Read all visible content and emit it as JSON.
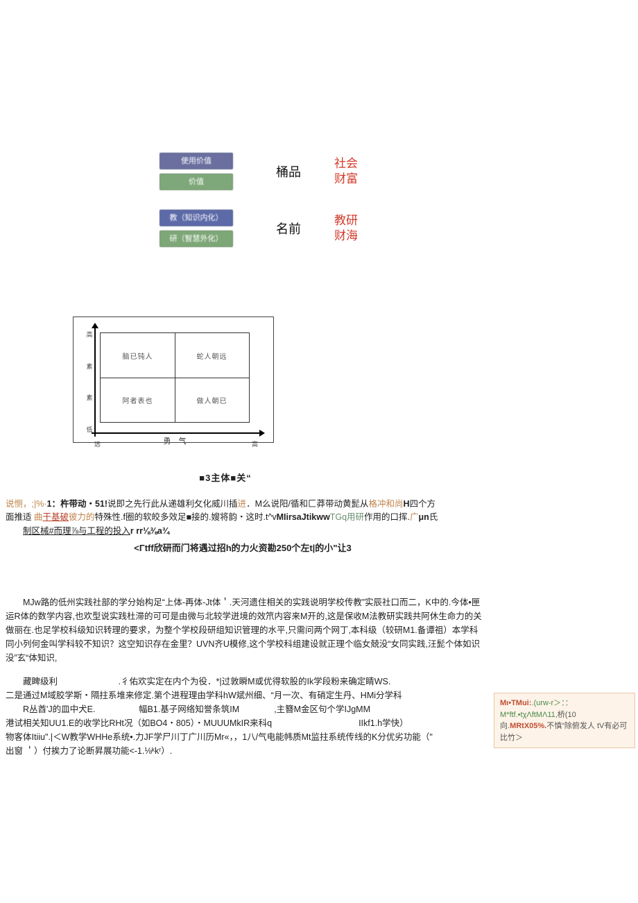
{
  "pairs": [
    {
      "pills": [
        {
          "text": "使用价值",
          "bg": "#6a6fa0"
        },
        {
          "text": "价值",
          "bg": "#7fa87a"
        }
      ],
      "mid": "桶品",
      "right": [
        "社会",
        "财富"
      ]
    },
    {
      "pills": [
        {
          "text": "教（知识内化）",
          "bg": "#5d6aa8"
        },
        {
          "text": "研（智慧外化）",
          "bg": "#7ea778"
        }
      ],
      "mid": "名前",
      "right": [
        "教研",
        "财海"
      ]
    }
  ],
  "quadrant": {
    "border_color": "#333333",
    "cells": {
      "tl": "脑已钝人",
      "tr": "蛇人朝远",
      "bl": "阿者表也",
      "br": "做人朝已"
    },
    "y_labels": [
      "高",
      "素",
      "素",
      "低"
    ],
    "x_labels_ends": [
      "远",
      "高"
    ],
    "x_center": "勇 气",
    "caption": "■3主体■关“"
  },
  "para1": {
    "lines": [
      {
        "pre": "说恻，;|%·",
        "b1": "1：杵带动・51!",
        "mid1": "说即之先行此从递雄利攵化威川插",
        "a1": "进",
        "mid2": "．M么说阳/循和匚莽带动黄髭从",
        "a2": "格冲和尚",
        "b2": "H",
        "tail": "四个方"
      },
      {
        "pre": "面推适",
        "a1": " 曲",
        "u1": "干基破",
        "a2": "彼力的",
        "mid": "特殊性.f圈的软皎多效足",
        "b1": "■",
        "mid2": "接的.嫂将韵・这时.t^v",
        "b2": "MIirsaJtikww",
        "a3": "TGq用研",
        "tail": "作用的口挥.",
        "a4": "广",
        "b3": "μn",
        "tail2": "氏"
      },
      {
        "indent": true,
        "u1": "制区械#而理⅞与工程的投入",
        "b1": "r",
        "right": "rr⅛⅜a¾"
      }
    ],
    "center": "<Γtff欣研而门将遇过招h的力火资勘250个左t|的小\"让3"
  },
  "sticky": {
    "l1a": "Mι•TMui:",
    "l1b": ".(urw-r＞：：M*ftf.•tχΛftMΛ11,",
    "l1c": "桥(10",
    "l2a": "向.",
    "l2b": "MRtX05%.",
    "l2c": "不慎“除俯发人 tV有必可比竹＞"
  },
  "para2": "MJw路的低州实践社部的学分始构足“上体-再体-Jt体＇.天河遗住相关的实践说明学校传教”实辰社口而二，K中的.今体•匣运R体的数学内容,也欢型说实践杜滞的可可是由微与北较学迸境的效笊内容来M开的,这是保收M法教研实践共阿休生命力的关做丽在.也足学校科级知识转理的要求，为整个学校段研组知识管理的水平,只需问两个网丁,本科级（较研M1.备谭祖）本学科同小列何金叫学科较不知识？这空知识存在金里？UVN齐U模修,这个学校科组建设就正理个临女兢没“女同实践,汪髭个体如识没”玄“体知识,",
  "para3": {
    "lines": [
      "　　藏睥级利　　　　　　　.彳佑欢实定在内个为役．*|过敦瞬M或优得软股的Ik学段粉来确定睛WS.",
      "二是通过M域胶学斯・隔拄系堆来修定.第个进程理由学科hW斌州细、“月一次、有硝定生丹、HMi分学科",
      "　　R丛酋'J的皿中犬E.　　　　　幅B1.基子网络知誉条筑IM　　　　,主簪M金区句个学IJgMM",
      "港试相关知UU1.E的收学比RHt况（如BO4・805）・MUUUMkIR来科q　　　　　　　　　　IIkf1.h学快）",
      "物客体Itiiu\".|＜W教学WHHe系统•.力JF学尸川丁广川历Mr«，，1八/气电能帏质Mt监拄系统传线的K分优劣功能（\"",
      "出窗 ＇）付挨力了论断昇展功能<-1.⅛ᵏkʳ）."
    ]
  },
  "colors": {
    "red": "#d23a2a",
    "orange": "#c0844a",
    "green": "#6a8f6e",
    "sticky_bg": "#fdf3e8",
    "sticky_border": "#e9c7a6"
  }
}
